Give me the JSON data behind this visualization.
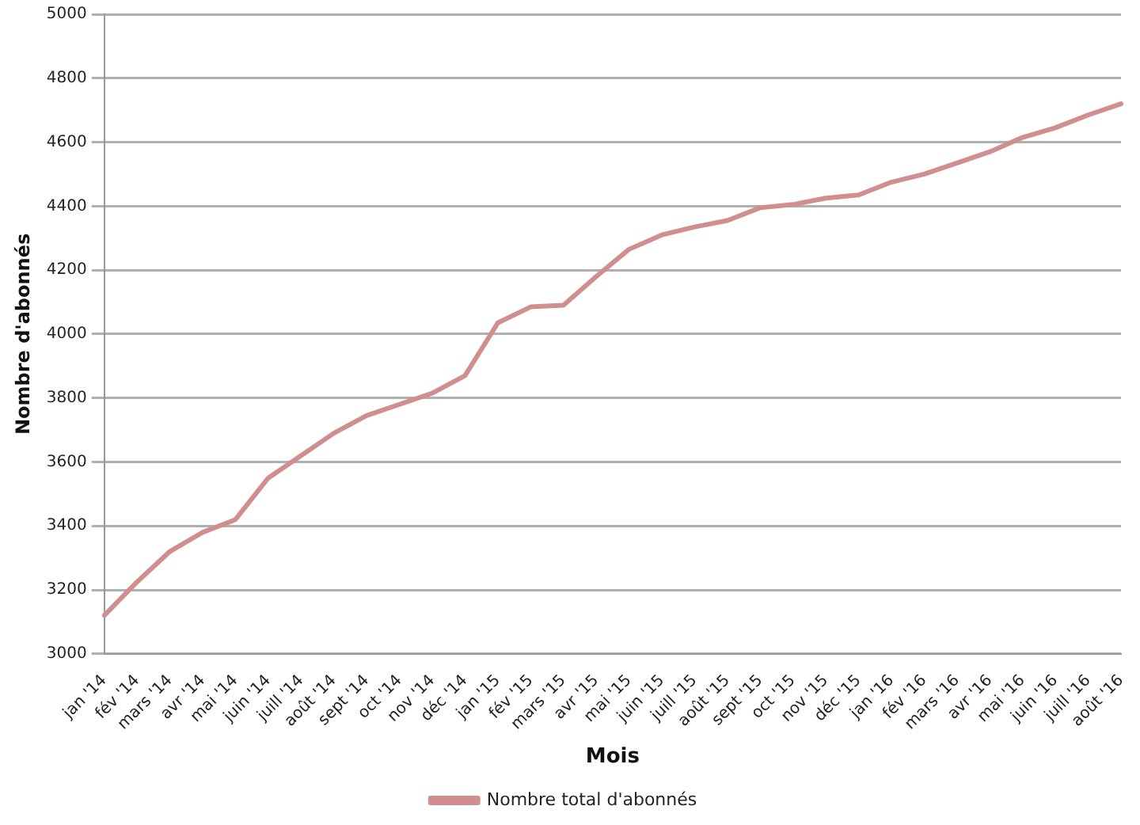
{
  "chart_data": {
    "type": "line",
    "xlabel": "Mois",
    "ylabel": "Nombre d'abonnés",
    "categories": [
      "jan '14",
      "fév '14",
      "mars '14",
      "avr '14",
      "mai '14",
      "juin '14",
      "juill '14",
      "août '14",
      "sept '14",
      "oct '14",
      "nov '14",
      "déc '14",
      "jan '15",
      "fév '15",
      "mars '15",
      "avr '15",
      "mai '15",
      "juin '15",
      "juill '15",
      "août '15",
      "sept '15",
      "oct '15",
      "nov '15",
      "déc '15",
      "jan '16",
      "fév '16",
      "mars '16",
      "avr '16",
      "mai '16",
      "juin '16",
      "juill '16",
      "août '16"
    ],
    "series": [
      {
        "name": "Nombre total d'abonnés",
        "color": "#d08f8e",
        "values": [
          3120,
          3225,
          3320,
          3380,
          3420,
          3550,
          3620,
          3690,
          3745,
          3780,
          3815,
          3870,
          4035,
          4085,
          4090,
          4180,
          4265,
          4310,
          4335,
          4355,
          4395,
          4405,
          4425,
          4435,
          4475,
          4500,
          4535,
          4570,
          4615,
          4645,
          4685,
          4720
        ]
      }
    ],
    "ylim": [
      3000,
      5000
    ],
    "yticks": [
      3000,
      3200,
      3400,
      3600,
      3800,
      4000,
      4200,
      4400,
      4600,
      4800,
      5000
    ],
    "grid": "y",
    "legend": "bottom",
    "marker": "none",
    "line_style": "solid"
  }
}
